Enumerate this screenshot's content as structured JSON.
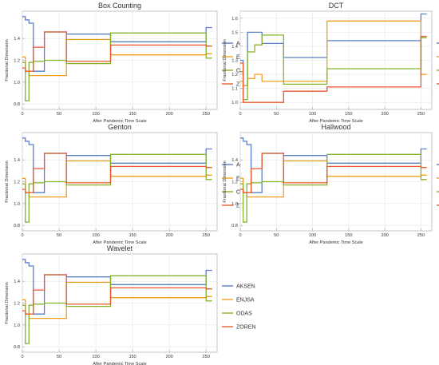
{
  "colors": {
    "AKSEN": "#5a7ec8",
    "ENJSA": "#f0a020",
    "ODAS": "#86b22a",
    "ZOREN": "#e8582a"
  },
  "chart_data": [
    {
      "type": "line",
      "step": true,
      "title": "Box Counting",
      "xlabel": "After Pandemic Time Scale",
      "ylabel": "Fractional Dimension",
      "xlim": [
        0,
        265
      ],
      "ylim": [
        0.75,
        1.65
      ],
      "xticks": [
        "0",
        "50",
        "100",
        "150",
        "200",
        "250"
      ],
      "yticks": [
        "0.8",
        "1.0",
        "1.2",
        "1.4"
      ],
      "grid": true,
      "legend": "right",
      "series": [
        {
          "name": "AKSEN",
          "x": [
            0,
            4,
            9,
            15,
            30,
            60,
            120,
            250,
            258
          ],
          "y": [
            1.6,
            1.57,
            1.54,
            1.1,
            1.46,
            1.44,
            1.37,
            1.5,
            1.5
          ]
        },
        {
          "name": "ENJSA",
          "x": [
            0,
            4,
            9,
            15,
            30,
            60,
            120,
            250,
            258
          ],
          "y": [
            1.23,
            1.1,
            1.06,
            1.06,
            1.06,
            1.39,
            1.25,
            1.26,
            1.26
          ]
        },
        {
          "name": "ODAS",
          "x": [
            0,
            4,
            9,
            15,
            30,
            60,
            120,
            250,
            258
          ],
          "y": [
            1.18,
            0.83,
            1.18,
            1.19,
            1.2,
            1.17,
            1.45,
            1.22,
            1.22
          ]
        },
        {
          "name": "ZOREN",
          "x": [
            0,
            4,
            9,
            15,
            30,
            60,
            120,
            250,
            258
          ],
          "y": [
            1.13,
            1.1,
            1.1,
            1.32,
            1.46,
            1.19,
            1.34,
            1.33,
            1.33
          ]
        }
      ]
    },
    {
      "type": "line",
      "step": true,
      "title": "DCT",
      "xlabel": "After Pandemic Time Scale",
      "ylabel": "Fractional Dimension",
      "xlim": [
        0,
        265
      ],
      "ylim": [
        0.95,
        1.65
      ],
      "xticks": [
        "0",
        "50",
        "100",
        "150",
        "200",
        "250"
      ],
      "yticks": [
        "1.0",
        "1.1",
        "1.2",
        "1.3",
        "1.4",
        "1.5",
        "1.6"
      ],
      "grid": true,
      "legend": "right",
      "series": [
        {
          "name": "AKSEN",
          "x": [
            0,
            4,
            10,
            20,
            30,
            60,
            120,
            250,
            258
          ],
          "y": [
            1.3,
            1.12,
            1.5,
            1.5,
            1.42,
            1.32,
            1.44,
            1.63,
            1.63
          ]
        },
        {
          "name": "ENJSA",
          "x": [
            0,
            4,
            10,
            20,
            30,
            60,
            120,
            250,
            258
          ],
          "y": [
            1.15,
            1.12,
            1.17,
            1.2,
            1.15,
            1.15,
            1.58,
            1.2,
            1.2
          ]
        },
        {
          "name": "ODAS",
          "x": [
            0,
            4,
            10,
            20,
            30,
            60,
            120,
            250,
            258
          ],
          "y": [
            1.22,
            1.02,
            1.36,
            1.41,
            1.48,
            1.13,
            1.24,
            1.46,
            1.46
          ]
        },
        {
          "name": "ZOREN",
          "x": [
            0,
            4,
            10,
            20,
            30,
            60,
            120,
            250,
            258
          ],
          "y": [
            1.28,
            1.0,
            1.0,
            1.0,
            1.0,
            1.08,
            1.11,
            1.47,
            1.47
          ]
        }
      ]
    },
    {
      "type": "line",
      "step": true,
      "title": "Genton",
      "xlabel": "After Pandemic Time Scale",
      "ylabel": "Fractional Dimension",
      "xlim": [
        0,
        265
      ],
      "ylim": [
        0.75,
        1.65
      ],
      "xticks": [
        "0",
        "50",
        "100",
        "150",
        "200",
        "250"
      ],
      "yticks": [
        "0.8",
        "1.0",
        "1.2",
        "1.4"
      ],
      "grid": true,
      "legend": "right",
      "series": [
        {
          "name": "AKSEN",
          "x": [
            0,
            4,
            9,
            15,
            30,
            60,
            120,
            250,
            258
          ],
          "y": [
            1.6,
            1.57,
            1.54,
            1.1,
            1.46,
            1.44,
            1.37,
            1.5,
            1.5
          ]
        },
        {
          "name": "ENJSA",
          "x": [
            0,
            4,
            9,
            15,
            30,
            60,
            120,
            250,
            258
          ],
          "y": [
            1.23,
            1.1,
            1.06,
            1.06,
            1.06,
            1.39,
            1.25,
            1.26,
            1.26
          ]
        },
        {
          "name": "ODAS",
          "x": [
            0,
            4,
            9,
            15,
            30,
            60,
            120,
            250,
            258
          ],
          "y": [
            1.18,
            0.83,
            1.18,
            1.19,
            1.2,
            1.17,
            1.45,
            1.22,
            1.22
          ]
        },
        {
          "name": "ZOREN",
          "x": [
            0,
            4,
            9,
            15,
            30,
            60,
            120,
            250,
            258
          ],
          "y": [
            1.13,
            1.1,
            1.1,
            1.32,
            1.46,
            1.19,
            1.34,
            1.33,
            1.33
          ]
        }
      ]
    },
    {
      "type": "line",
      "step": true,
      "title": "Hallwood",
      "xlabel": "After Pandemic Time Scale",
      "ylabel": "Fractional Dimension",
      "xlim": [
        0,
        265
      ],
      "ylim": [
        0.75,
        1.65
      ],
      "xticks": [
        "0",
        "50",
        "100",
        "150",
        "200",
        "250"
      ],
      "yticks": [
        "0.8",
        "1.0",
        "1.2",
        "1.4"
      ],
      "grid": true,
      "legend": "right",
      "series": [
        {
          "name": "AKSEN",
          "x": [
            0,
            4,
            9,
            15,
            30,
            60,
            120,
            250,
            258
          ],
          "y": [
            1.6,
            1.57,
            1.54,
            1.1,
            1.46,
            1.44,
            1.37,
            1.5,
            1.5
          ]
        },
        {
          "name": "ENJSA",
          "x": [
            0,
            4,
            9,
            15,
            30,
            60,
            120,
            250,
            258
          ],
          "y": [
            1.23,
            1.1,
            1.06,
            1.06,
            1.06,
            1.39,
            1.25,
            1.26,
            1.26
          ]
        },
        {
          "name": "ODAS",
          "x": [
            0,
            4,
            9,
            15,
            30,
            60,
            120,
            250,
            258
          ],
          "y": [
            1.18,
            0.83,
            1.18,
            1.19,
            1.2,
            1.17,
            1.45,
            1.22,
            1.22
          ]
        },
        {
          "name": "ZOREN",
          "x": [
            0,
            4,
            9,
            15,
            30,
            60,
            120,
            250,
            258
          ],
          "y": [
            1.13,
            1.1,
            1.1,
            1.32,
            1.46,
            1.19,
            1.34,
            1.33,
            1.33
          ]
        }
      ]
    },
    {
      "type": "line",
      "step": true,
      "title": "Wavelet",
      "xlabel": "After Pandemic Time Scale",
      "ylabel": "Fractional Dimension",
      "xlim": [
        0,
        265
      ],
      "ylim": [
        0.75,
        1.65
      ],
      "xticks": [
        "0",
        "50",
        "100",
        "150",
        "200",
        "250"
      ],
      "yticks": [
        "0.8",
        "1.0",
        "1.2",
        "1.4"
      ],
      "grid": true,
      "legend": "right",
      "series": [
        {
          "name": "AKSEN",
          "x": [
            0,
            4,
            9,
            15,
            30,
            60,
            120,
            250,
            258
          ],
          "y": [
            1.6,
            1.57,
            1.54,
            1.1,
            1.46,
            1.44,
            1.37,
            1.5,
            1.5
          ]
        },
        {
          "name": "ENJSA",
          "x": [
            0,
            4,
            9,
            15,
            30,
            60,
            120,
            250,
            258
          ],
          "y": [
            1.23,
            1.1,
            1.06,
            1.06,
            1.06,
            1.39,
            1.25,
            1.26,
            1.26
          ]
        },
        {
          "name": "ODAS",
          "x": [
            0,
            4,
            9,
            15,
            30,
            60,
            120,
            250,
            258
          ],
          "y": [
            1.18,
            0.83,
            1.18,
            1.19,
            1.2,
            1.17,
            1.45,
            1.22,
            1.22
          ]
        },
        {
          "name": "ZOREN",
          "x": [
            0,
            4,
            9,
            15,
            30,
            60,
            120,
            250,
            258
          ],
          "y": [
            1.13,
            1.1,
            1.1,
            1.32,
            1.46,
            1.19,
            1.34,
            1.33,
            1.33
          ]
        }
      ]
    }
  ]
}
